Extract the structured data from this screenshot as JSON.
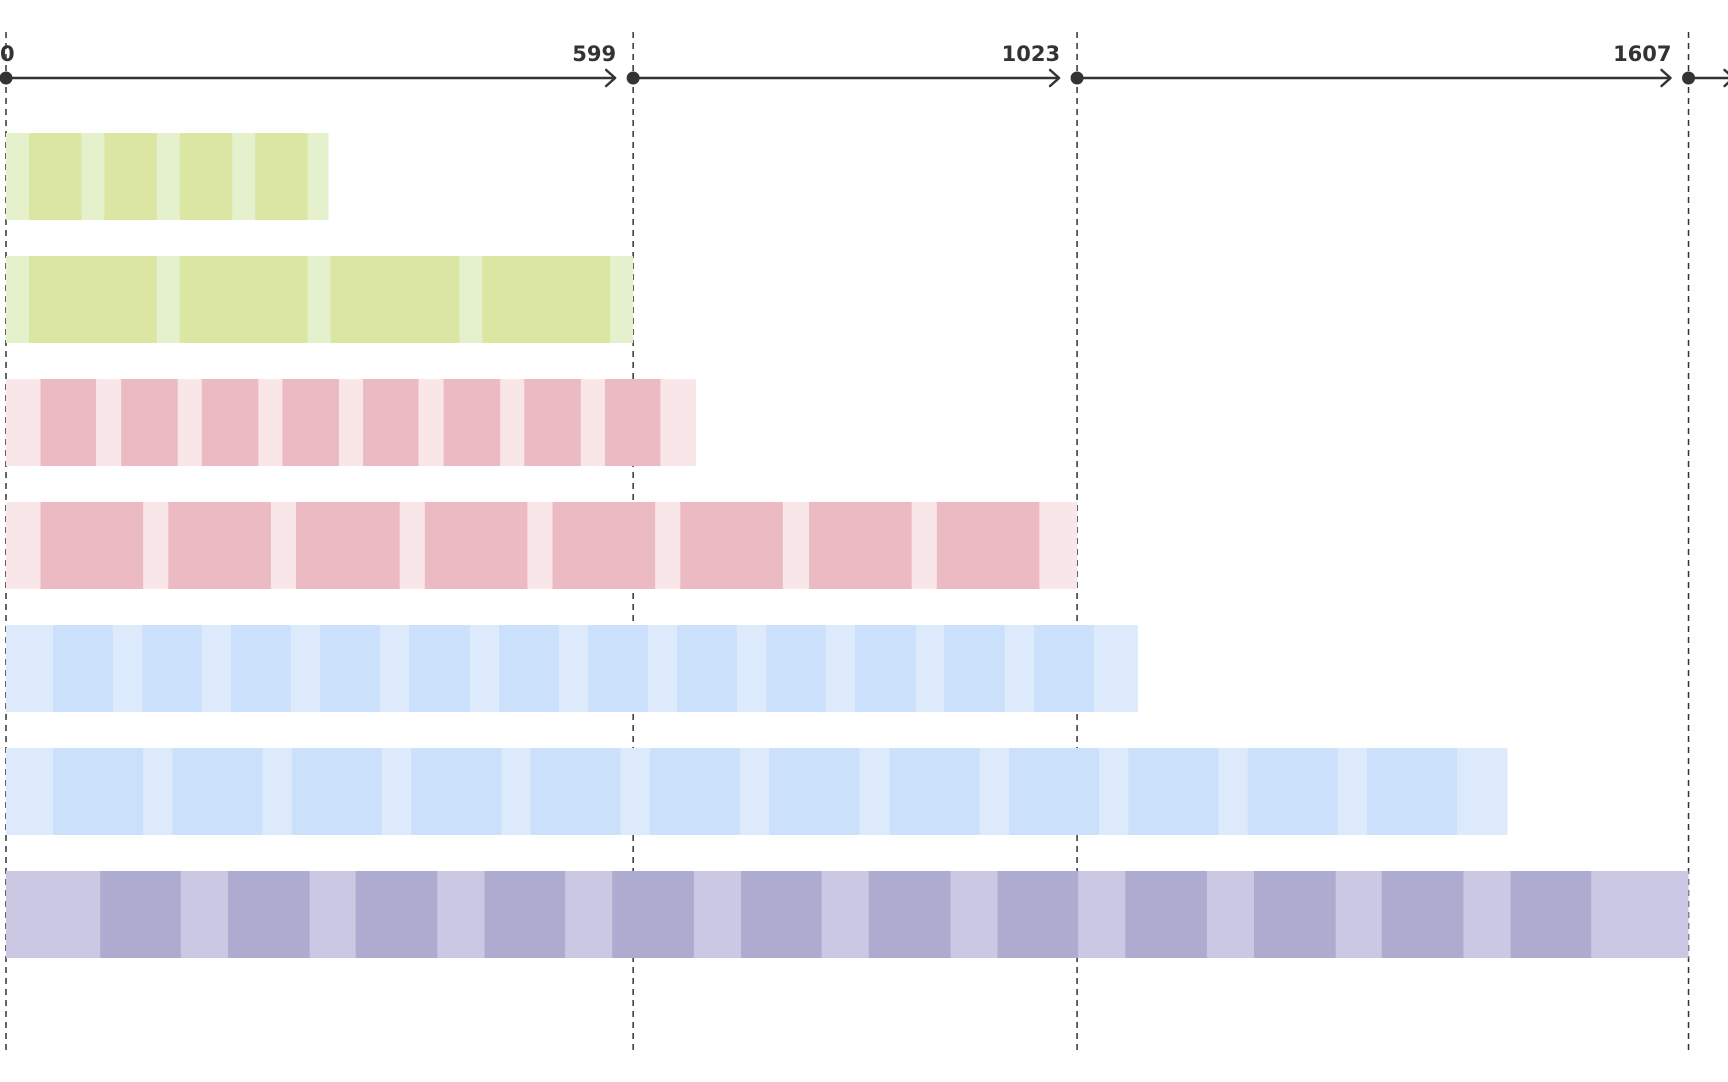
{
  "timeline": {
    "markers": [
      {
        "value": 0,
        "label": "0"
      },
      {
        "value": 599,
        "label": "599"
      },
      {
        "value": 1023,
        "label": "1023"
      },
      {
        "value": 1607,
        "label": "1607"
      }
    ],
    "axis_max": 1650
  },
  "rows": [
    {
      "name": "green-short",
      "light": "#e5f0cc",
      "dark": "#dae6a2",
      "end": 308,
      "dark_blocks": [
        [
          22,
          72
        ],
        [
          94,
          144
        ],
        [
          166,
          216
        ],
        [
          238,
          288
        ]
      ]
    },
    {
      "name": "green-long",
      "light": "#e5f0cc",
      "dark": "#dae6a2",
      "end": 599,
      "dark_blocks": [
        [
          22,
          144
        ],
        [
          166,
          288
        ],
        [
          310,
          433
        ],
        [
          455,
          577
        ]
      ]
    },
    {
      "name": "pink-short",
      "light": "#f9e6e8",
      "dark": "#ecbac2",
      "end": 659,
      "dark_blocks": [
        [
          33,
          86
        ],
        [
          110,
          164
        ],
        [
          187,
          241
        ],
        [
          264,
          318
        ],
        [
          341,
          394
        ],
        [
          418,
          472
        ],
        [
          495,
          549
        ],
        [
          572,
          625
        ]
      ]
    },
    {
      "name": "pink-long",
      "light": "#f9e6e8",
      "dark": "#ecbac2",
      "end": 1023,
      "dark_blocks": [
        [
          33,
          131
        ],
        [
          155,
          253
        ],
        [
          277,
          376
        ],
        [
          400,
          498
        ],
        [
          522,
          620
        ],
        [
          644,
          742
        ],
        [
          767,
          865
        ],
        [
          889,
          987
        ]
      ]
    },
    {
      "name": "blue-short",
      "light": "#dceafc",
      "dark": "#cbe0fa",
      "end": 1081,
      "dark_blocks": [
        [
          45,
          102
        ],
        [
          130,
          187
        ],
        [
          215,
          272
        ],
        [
          300,
          357
        ],
        [
          385,
          443
        ],
        [
          471,
          528
        ],
        [
          556,
          613
        ],
        [
          641,
          698
        ],
        [
          726,
          783
        ],
        [
          811,
          869
        ],
        [
          896,
          954
        ],
        [
          982,
          1039
        ]
      ]
    },
    {
      "name": "blue-long",
      "light": "#dceafc",
      "dark": "#cbe0fa",
      "end": 1434,
      "dark_blocks": [
        [
          45,
          131
        ],
        [
          159,
          245
        ],
        [
          273,
          359
        ],
        [
          387,
          473
        ],
        [
          501,
          587
        ],
        [
          615,
          701
        ],
        [
          729,
          815
        ],
        [
          844,
          930
        ],
        [
          958,
          1044
        ],
        [
          1072,
          1158
        ],
        [
          1186,
          1272
        ],
        [
          1300,
          1386
        ]
      ]
    },
    {
      "name": "purple",
      "light": "#cac8e2",
      "dark": "#aeabd1",
      "end": 1607,
      "dark_blocks": [
        [
          90,
          167
        ],
        [
          212,
          290
        ],
        [
          334,
          412
        ],
        [
          457,
          534
        ],
        [
          579,
          657
        ],
        [
          702,
          779
        ],
        [
          824,
          902
        ],
        [
          947,
          1024
        ],
        [
          1069,
          1147
        ],
        [
          1192,
          1270
        ],
        [
          1314,
          1392
        ],
        [
          1437,
          1514
        ]
      ]
    }
  ],
  "colors": {
    "axis": "#333333",
    "guide": "#333333"
  }
}
